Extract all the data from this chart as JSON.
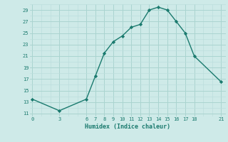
{
  "x": [
    0,
    3,
    6,
    7,
    8,
    9,
    10,
    11,
    12,
    13,
    14,
    15,
    16,
    17,
    18,
    21
  ],
  "y": [
    13.5,
    11.5,
    13.5,
    17.5,
    21.5,
    23.5,
    24.5,
    26.0,
    26.5,
    29.0,
    29.5,
    29.0,
    27.0,
    25.0,
    21.0,
    16.5
  ],
  "xticks": [
    0,
    3,
    6,
    7,
    8,
    9,
    10,
    11,
    12,
    13,
    14,
    15,
    16,
    17,
    18,
    21
  ],
  "yticks": [
    11,
    13,
    15,
    17,
    19,
    21,
    23,
    25,
    27,
    29
  ],
  "ylim": [
    10.5,
    30
  ],
  "xlim": [
    -0.3,
    21.5
  ],
  "xlabel": "Humidex (Indice chaleur)",
  "line_color": "#1a7a6e",
  "bg_color": "#ceeae8",
  "grid_major_color": "#aad4d0",
  "grid_minor_color": "#bcdedd",
  "tick_color": "#1a7a6e",
  "marker": "D",
  "marker_size": 2.2,
  "line_width": 1.0,
  "tick_fontsize": 5.0,
  "xlabel_fontsize": 6.0
}
